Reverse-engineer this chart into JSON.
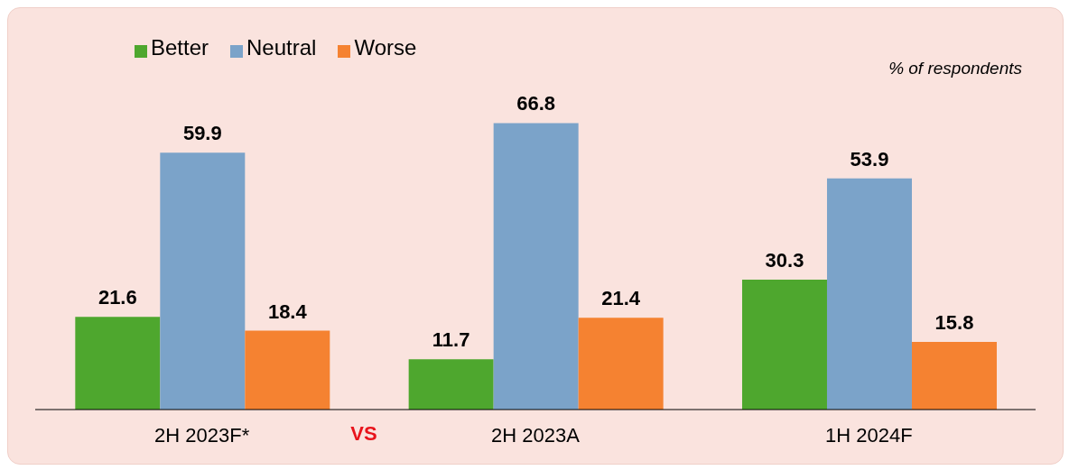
{
  "chart_data": {
    "type": "bar",
    "categories": [
      "2H 2023F*",
      "2H 2023A",
      "1H 2024F"
    ],
    "series": [
      {
        "name": "Better",
        "color": "#4ea72e",
        "values": [
          21.6,
          11.7,
          30.3
        ]
      },
      {
        "name": "Neutral",
        "color": "#7ba3c9",
        "values": [
          59.9,
          66.8,
          53.9
        ]
      },
      {
        "name": "Worse",
        "color": "#f58231",
        "values": [
          18.4,
          21.4,
          15.8
        ]
      }
    ],
    "data_labels": true,
    "legend": "top left",
    "grid": false,
    "annotations": [
      "% of respondents",
      "VS"
    ]
  }
}
